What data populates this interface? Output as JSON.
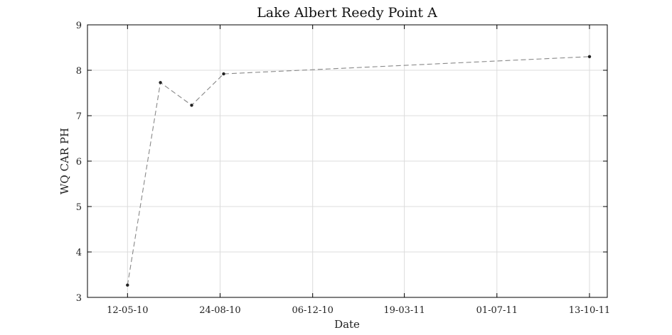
{
  "chart_data": {
    "type": "line",
    "title": "Lake Albert Reedy Point A",
    "xlabel": "Date",
    "ylabel": "WQ CAR PH",
    "x_tick_labels": [
      "12-05-10",
      "24-08-10",
      "06-12-10",
      "19-03-11",
      "01-07-11",
      "13-10-11"
    ],
    "y_tick_labels": [
      "3",
      "4",
      "5",
      "6",
      "7",
      "8",
      "9"
    ],
    "xlim": [
      "2010-03-28",
      "2011-11-02"
    ],
    "ylim": [
      3,
      9
    ],
    "grid": true,
    "line_style": "dashed",
    "colors": {
      "line": "#888888",
      "marker": "#222222",
      "grid": "#dcdcdc",
      "axes": "#000000"
    },
    "series": [
      {
        "x": [
          "2010-05-12",
          "2010-06-18",
          "2010-07-23",
          "2010-08-28",
          "2011-10-13"
        ],
        "y": [
          3.27,
          7.73,
          7.23,
          7.92,
          8.3
        ]
      }
    ]
  }
}
